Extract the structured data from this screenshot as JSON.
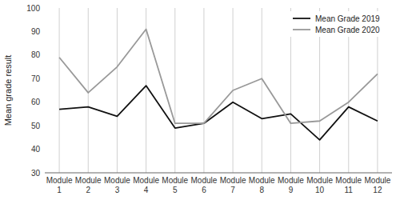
{
  "chart_data": {
    "type": "line",
    "categories": [
      "Module\n1",
      "Module\n2",
      "Module\n3",
      "Module\n4",
      "Module\n5",
      "Module\n6",
      "Module\n7",
      "Module\n8",
      "Module\n9",
      "Module\n10",
      "Module\n11",
      "Module\n12"
    ],
    "series": [
      {
        "name": "Mean Grade 2019",
        "color": "#111111",
        "values": [
          57,
          58,
          54,
          67,
          49,
          51,
          60,
          53,
          55,
          44,
          58,
          52
        ]
      },
      {
        "name": "Mean Grade 2020",
        "color": "#999999",
        "values": [
          79,
          64,
          75,
          91,
          51,
          51,
          65,
          70,
          51,
          52,
          60,
          72
        ]
      }
    ],
    "y_label": "Mean grade result",
    "ylim": [
      30,
      100
    ],
    "yticks": [
      30,
      40,
      50,
      60,
      70,
      80,
      90,
      100
    ],
    "grid": "x",
    "legend": "upper right"
  }
}
